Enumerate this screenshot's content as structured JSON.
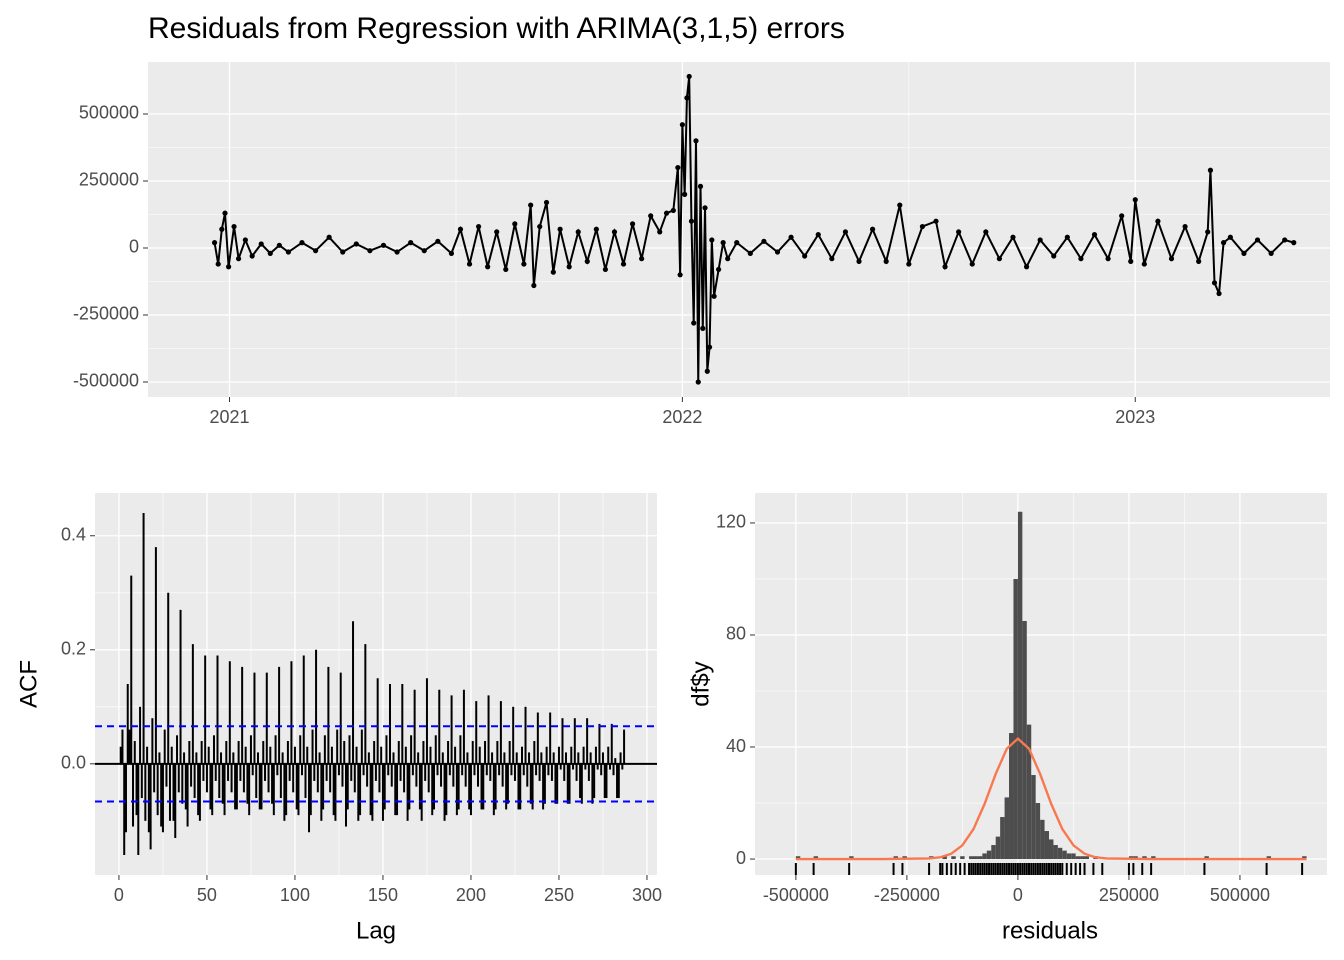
{
  "chart_data": [
    {
      "type": "line",
      "title": "Residuals from Regression with ARIMA(3,1,5) errors",
      "color": "#000000",
      "grid": true,
      "x": [
        2020.967,
        2020.975,
        2020.983,
        2020.99,
        2020.998,
        2021.01,
        2021.02,
        2021.035,
        2021.05,
        2021.07,
        2021.09,
        2021.11,
        2021.13,
        2021.16,
        2021.19,
        2021.22,
        2021.25,
        2021.28,
        2021.31,
        2021.34,
        2021.37,
        2021.4,
        2021.43,
        2021.46,
        2021.49,
        2021.51,
        2021.53,
        2021.55,
        2021.57,
        2021.59,
        2021.61,
        2021.63,
        2021.65,
        2021.665,
        2021.672,
        2021.685,
        2021.7,
        2021.715,
        2021.73,
        2021.75,
        2021.77,
        2021.79,
        2021.81,
        2021.83,
        2021.85,
        2021.87,
        2021.89,
        2021.91,
        2021.93,
        2021.95,
        2021.965,
        2021.98,
        2021.99,
        2021.995,
        2022.0,
        2022.005,
        2022.01,
        2022.015,
        2022.02,
        2022.025,
        2022.03,
        2022.035,
        2022.04,
        2022.045,
        2022.05,
        2022.055,
        2022.06,
        2022.065,
        2022.07,
        2022.08,
        2022.09,
        2022.1,
        2022.12,
        2022.15,
        2022.18,
        2022.21,
        2022.24,
        2022.27,
        2022.3,
        2022.33,
        2022.36,
        2022.39,
        2022.42,
        2022.45,
        2022.48,
        2022.5,
        2022.53,
        2022.56,
        2022.58,
        2022.61,
        2022.64,
        2022.67,
        2022.7,
        2022.73,
        2022.76,
        2022.79,
        2022.82,
        2022.85,
        2022.88,
        2022.91,
        2022.94,
        2022.97,
        2022.99,
        2023.0,
        2023.02,
        2023.05,
        2023.08,
        2023.11,
        2023.14,
        2023.16,
        2023.166,
        2023.175,
        2023.185,
        2023.195,
        2023.21,
        2023.24,
        2023.27,
        2023.3,
        2023.33,
        2023.35
      ],
      "values": [
        20000,
        -60000,
        70000,
        130000,
        -70000,
        80000,
        -40000,
        30000,
        -30000,
        15000,
        -20000,
        10000,
        -15000,
        20000,
        -10000,
        40000,
        -15000,
        15000,
        -10000,
        10000,
        -15000,
        20000,
        -10000,
        25000,
        -20000,
        70000,
        -60000,
        80000,
        -70000,
        60000,
        -80000,
        90000,
        -60000,
        160000,
        -140000,
        80000,
        170000,
        -90000,
        70000,
        -70000,
        60000,
        -50000,
        70000,
        -80000,
        60000,
        -60000,
        90000,
        -40000,
        120000,
        60000,
        130000,
        140000,
        300000,
        -100000,
        460000,
        200000,
        560000,
        640000,
        100000,
        -280000,
        400000,
        -500000,
        230000,
        -300000,
        150000,
        -460000,
        -370000,
        30000,
        -180000,
        -80000,
        20000,
        -40000,
        20000,
        -20000,
        25000,
        -15000,
        40000,
        -30000,
        50000,
        -40000,
        60000,
        -50000,
        70000,
        -50000,
        160000,
        -60000,
        80000,
        100000,
        -70000,
        60000,
        -60000,
        60000,
        -40000,
        40000,
        -70000,
        30000,
        -30000,
        40000,
        -40000,
        50000,
        -40000,
        120000,
        -50000,
        180000,
        -60000,
        100000,
        -40000,
        80000,
        -50000,
        60000,
        290000,
        -130000,
        -170000,
        20000,
        40000,
        -20000,
        30000,
        -20000,
        30000,
        20000
      ],
      "xlim": [
        2020.82,
        2023.43
      ],
      "xticks": [
        2021,
        2022,
        2023
      ],
      "ylim": [
        -556000,
        694000
      ],
      "yticks": [
        -500000,
        -250000,
        0,
        250000,
        500000
      ]
    },
    {
      "type": "bar",
      "x_label": "Lag",
      "y_label": "ACF",
      "color": "#000000",
      "grid": true,
      "ci_color": "#0000ff",
      "ci_bounds": [
        0.066,
        -0.066
      ],
      "x": [
        1,
        2,
        3,
        4,
        5,
        6,
        7,
        8,
        9,
        10,
        11,
        12,
        13,
        14,
        15,
        16,
        17,
        18,
        19,
        20,
        21,
        22,
        23,
        24,
        25,
        26,
        27,
        28,
        29,
        30,
        31,
        32,
        33,
        34,
        35,
        36,
        37,
        38,
        39,
        40,
        41,
        42,
        43,
        44,
        45,
        46,
        47,
        48,
        49,
        50,
        51,
        52,
        53,
        54,
        55,
        56,
        57,
        58,
        59,
        60,
        61,
        62,
        63,
        64,
        65,
        66,
        67,
        68,
        69,
        70,
        71,
        72,
        73,
        74,
        75,
        76,
        77,
        78,
        79,
        80,
        81,
        82,
        83,
        84,
        85,
        86,
        87,
        88,
        89,
        90,
        91,
        92,
        93,
        94,
        95,
        96,
        97,
        98,
        99,
        100,
        101,
        102,
        103,
        104,
        105,
        106,
        107,
        108,
        109,
        110,
        111,
        112,
        113,
        114,
        115,
        116,
        117,
        118,
        119,
        120,
        121,
        122,
        123,
        124,
        125,
        126,
        127,
        128,
        129,
        130,
        131,
        132,
        133,
        134,
        135,
        136,
        137,
        138,
        139,
        140,
        141,
        142,
        143,
        144,
        145,
        146,
        147,
        148,
        149,
        150,
        151,
        152,
        153,
        154,
        155,
        156,
        157,
        158,
        159,
        160,
        161,
        162,
        163,
        164,
        165,
        166,
        167,
        168,
        169,
        170,
        171,
        172,
        173,
        174,
        175,
        176,
        177,
        178,
        179,
        180,
        181,
        182,
        183,
        184,
        185,
        186,
        187,
        188,
        189,
        190,
        191,
        192,
        193,
        194,
        195,
        196,
        197,
        198,
        199,
        200,
        201,
        202,
        203,
        204,
        205,
        206,
        207,
        208,
        209,
        210,
        211,
        212,
        213,
        214,
        215,
        216,
        217,
        218,
        219,
        220,
        221,
        222,
        223,
        224,
        225,
        226,
        227,
        228,
        229,
        230,
        231,
        232,
        233,
        234,
        235,
        236,
        237,
        238,
        239,
        240,
        241,
        242,
        243,
        244,
        245,
        246,
        247,
        248,
        249,
        250,
        251,
        252,
        253,
        254,
        255,
        256,
        257,
        258,
        259,
        260,
        261,
        262,
        263,
        264,
        265,
        266,
        267,
        268,
        269,
        270,
        271,
        272,
        273,
        274,
        275,
        276,
        277,
        278,
        279,
        280,
        281,
        282,
        283,
        284,
        285,
        286,
        287
      ],
      "values": [
        0.03,
        0.06,
        -0.16,
        -0.12,
        0.14,
        0.06,
        0.33,
        -0.11,
        0.04,
        -0.09,
        -0.16,
        0.1,
        -0.06,
        0.44,
        -0.1,
        0.03,
        -0.12,
        -0.15,
        0.08,
        -0.05,
        0.38,
        -0.09,
        0.02,
        -0.11,
        -0.12,
        0.06,
        -0.04,
        0.3,
        -0.1,
        0.03,
        -0.1,
        -0.13,
        0.05,
        -0.05,
        0.27,
        -0.07,
        0.02,
        -0.08,
        -0.11,
        0.04,
        -0.04,
        0.21,
        -0.06,
        0.02,
        -0.09,
        -0.1,
        0.04,
        -0.03,
        0.19,
        -0.05,
        0.03,
        -0.08,
        -0.09,
        0.05,
        -0.03,
        0.19,
        -0.06,
        0.02,
        -0.07,
        -0.09,
        0.04,
        -0.03,
        0.18,
        -0.05,
        0.02,
        -0.08,
        -0.08,
        0.04,
        -0.03,
        0.17,
        -0.05,
        0.03,
        -0.07,
        -0.09,
        0.05,
        -0.02,
        0.16,
        -0.06,
        0.02,
        -0.08,
        -0.08,
        0.04,
        -0.03,
        0.16,
        -0.05,
        0.03,
        -0.07,
        -0.09,
        0.05,
        -0.02,
        0.17,
        -0.06,
        0.02,
        -0.1,
        -0.09,
        0.04,
        -0.03,
        0.18,
        -0.05,
        0.03,
        -0.08,
        -0.09,
        0.05,
        -0.02,
        0.19,
        -0.06,
        0.03,
        -0.12,
        -0.09,
        0.06,
        -0.03,
        0.2,
        -0.05,
        0.02,
        -0.1,
        -0.08,
        0.05,
        -0.03,
        0.17,
        -0.05,
        0.03,
        -0.09,
        -0.1,
        0.06,
        -0.02,
        0.16,
        -0.04,
        0.04,
        -0.11,
        -0.08,
        0.05,
        -0.03,
        0.25,
        -0.05,
        0.03,
        -0.1,
        -0.09,
        0.06,
        -0.02,
        0.21,
        -0.04,
        0.02,
        -0.09,
        -0.1,
        0.04,
        -0.03,
        0.15,
        -0.05,
        0.03,
        -0.1,
        -0.08,
        0.05,
        -0.02,
        0.14,
        -0.04,
        0.02,
        -0.09,
        -0.09,
        0.04,
        -0.03,
        0.14,
        -0.05,
        0.03,
        -0.1,
        -0.08,
        0.05,
        -0.02,
        0.13,
        -0.04,
        0.02,
        -0.08,
        -0.1,
        0.04,
        -0.03,
        0.15,
        -0.05,
        0.03,
        -0.09,
        -0.08,
        0.05,
        -0.02,
        0.13,
        -0.04,
        0.02,
        -0.1,
        -0.09,
        0.04,
        -0.02,
        0.12,
        -0.04,
        0.03,
        -0.09,
        -0.08,
        0.05,
        -0.02,
        0.13,
        -0.04,
        0.02,
        -0.08,
        -0.09,
        0.04,
        -0.02,
        0.11,
        -0.04,
        0.03,
        -0.08,
        -0.08,
        0.04,
        -0.02,
        0.12,
        -0.03,
        0.02,
        -0.09,
        -0.08,
        0.04,
        -0.02,
        0.11,
        -0.04,
        0.02,
        -0.08,
        -0.07,
        0.04,
        -0.02,
        0.1,
        -0.03,
        0.02,
        -0.08,
        -0.08,
        0.03,
        -0.02,
        0.1,
        -0.04,
        0.02,
        -0.07,
        -0.08,
        0.04,
        -0.02,
        0.09,
        -0.03,
        0.02,
        -0.08,
        -0.07,
        0.03,
        -0.02,
        0.09,
        -0.03,
        0.02,
        -0.07,
        -0.07,
        0.03,
        -0.01,
        0.08,
        -0.03,
        0.02,
        -0.07,
        -0.07,
        0.03,
        -0.01,
        0.08,
        -0.03,
        0.02,
        -0.06,
        -0.07,
        0.03,
        -0.01,
        0.08,
        -0.03,
        0.02,
        -0.07,
        -0.06,
        0.03,
        -0.01,
        0.07,
        -0.02,
        0.02,
        -0.06,
        -0.06,
        0.03,
        -0.01,
        0.07,
        -0.02,
        0.01,
        -0.06,
        -0.06,
        0.02,
        -0.01,
        0.06
      ],
      "xlim": [
        -13.6,
        305.7
      ],
      "xticks": [
        0,
        50,
        100,
        150,
        200,
        250,
        300
      ],
      "ylim": [
        -0.195,
        0.475
      ],
      "yticks": [
        {
          "value": 0,
          "label": "0.0"
        },
        0.2,
        0.4
      ]
    },
    {
      "type": "histogram",
      "x_label": "residuals",
      "y_label": "df$y",
      "color": "#4d4d4d",
      "grid": true,
      "bins": [
        -510000,
        -500000,
        -490000,
        -480000,
        -470000,
        -460000,
        -450000,
        -440000,
        -430000,
        -420000,
        -410000,
        -400000,
        -390000,
        -380000,
        -370000,
        -360000,
        -350000,
        -340000,
        -330000,
        -320000,
        -310000,
        -300000,
        -290000,
        -280000,
        -270000,
        -260000,
        -250000,
        -240000,
        -230000,
        -220000,
        -210000,
        -200000,
        -190000,
        -180000,
        -170000,
        -160000,
        -150000,
        -140000,
        -130000,
        -120000,
        -110000,
        -100000,
        -90000,
        -80000,
        -70000,
        -60000,
        -50000,
        -40000,
        -30000,
        -20000,
        -10000,
        0,
        10000,
        20000,
        30000,
        40000,
        50000,
        60000,
        70000,
        80000,
        90000,
        100000,
        110000,
        120000,
        130000,
        140000,
        150000,
        160000,
        170000,
        180000,
        190000,
        200000,
        210000,
        220000,
        230000,
        240000,
        250000,
        260000,
        270000,
        280000,
        290000,
        300000,
        310000,
        320000,
        330000,
        340000,
        350000,
        360000,
        370000,
        380000,
        390000,
        400000,
        410000,
        420000,
        430000,
        440000,
        450000,
        460000,
        470000,
        480000,
        490000,
        500000,
        510000,
        520000,
        530000,
        540000,
        550000,
        560000,
        570000,
        580000,
        590000,
        600000,
        610000,
        620000,
        630000,
        640000,
        650000
      ],
      "values": [
        0,
        1,
        0,
        0,
        0,
        1,
        0,
        0,
        0,
        0,
        0,
        0,
        0,
        1,
        0,
        0,
        0,
        0,
        0,
        0,
        0,
        0,
        0,
        1,
        0,
        1,
        0,
        0,
        0,
        0,
        0,
        1,
        0,
        0,
        1,
        0,
        1,
        0,
        1,
        0,
        1,
        1,
        1,
        2,
        3,
        5,
        8,
        15,
        22,
        45,
        100,
        124,
        85,
        48,
        30,
        20,
        14,
        10,
        7,
        5,
        4,
        3,
        2,
        2,
        1,
        1,
        1,
        0,
        1,
        0,
        0,
        0,
        0,
        0,
        0,
        0,
        1,
        1,
        0,
        1,
        0,
        1,
        0,
        0,
        0,
        0,
        0,
        0,
        0,
        0,
        0,
        0,
        0,
        1,
        0,
        0,
        0,
        0,
        0,
        0,
        0,
        0,
        0,
        0,
        0,
        0,
        0,
        1,
        0,
        0,
        0,
        0,
        0,
        0,
        0,
        1
      ],
      "density": {
        "color": "#f8784f",
        "x": [
          -500000,
          -300000,
          -200000,
          -175000,
          -150000,
          -125000,
          -100000,
          -75000,
          -50000,
          -25000,
          0,
          25000,
          50000,
          75000,
          100000,
          125000,
          150000,
          175000,
          200000,
          300000,
          650000
        ],
        "values": [
          0,
          0,
          0.2,
          0.6,
          1.9,
          4.9,
          10.7,
          19.7,
          30.4,
          39.4,
          43,
          39.4,
          30.4,
          19.7,
          10.7,
          4.9,
          1.9,
          0.6,
          0.2,
          0,
          0
        ]
      },
      "rug": [
        -500000,
        -460000,
        -380000,
        -280000,
        -260000,
        -200000,
        -175000,
        -170000,
        -160000,
        -150000,
        -140000,
        -130000,
        -120000,
        -110000,
        -105000,
        -100000,
        -95000,
        -90000,
        -85000,
        -80000,
        -75000,
        -70000,
        -65000,
        -60000,
        -55000,
        -50000,
        -45000,
        -40000,
        -35000,
        -30000,
        -25000,
        -20000,
        -15000,
        -10000,
        -5000,
        0,
        5000,
        10000,
        15000,
        20000,
        25000,
        30000,
        35000,
        40000,
        45000,
        50000,
        55000,
        60000,
        65000,
        70000,
        75000,
        80000,
        85000,
        90000,
        95000,
        100000,
        110000,
        120000,
        130000,
        140000,
        150000,
        170000,
        190000,
        250000,
        260000,
        280000,
        300000,
        420000,
        560000,
        640000
      ],
      "xlim": [
        -592000,
        696000
      ],
      "xticks": [
        -500000,
        -250000,
        0,
        250000,
        500000
      ],
      "ylim": [
        -5.7,
        130.7
      ],
      "yticks": [
        0,
        40,
        80,
        120
      ]
    }
  ]
}
